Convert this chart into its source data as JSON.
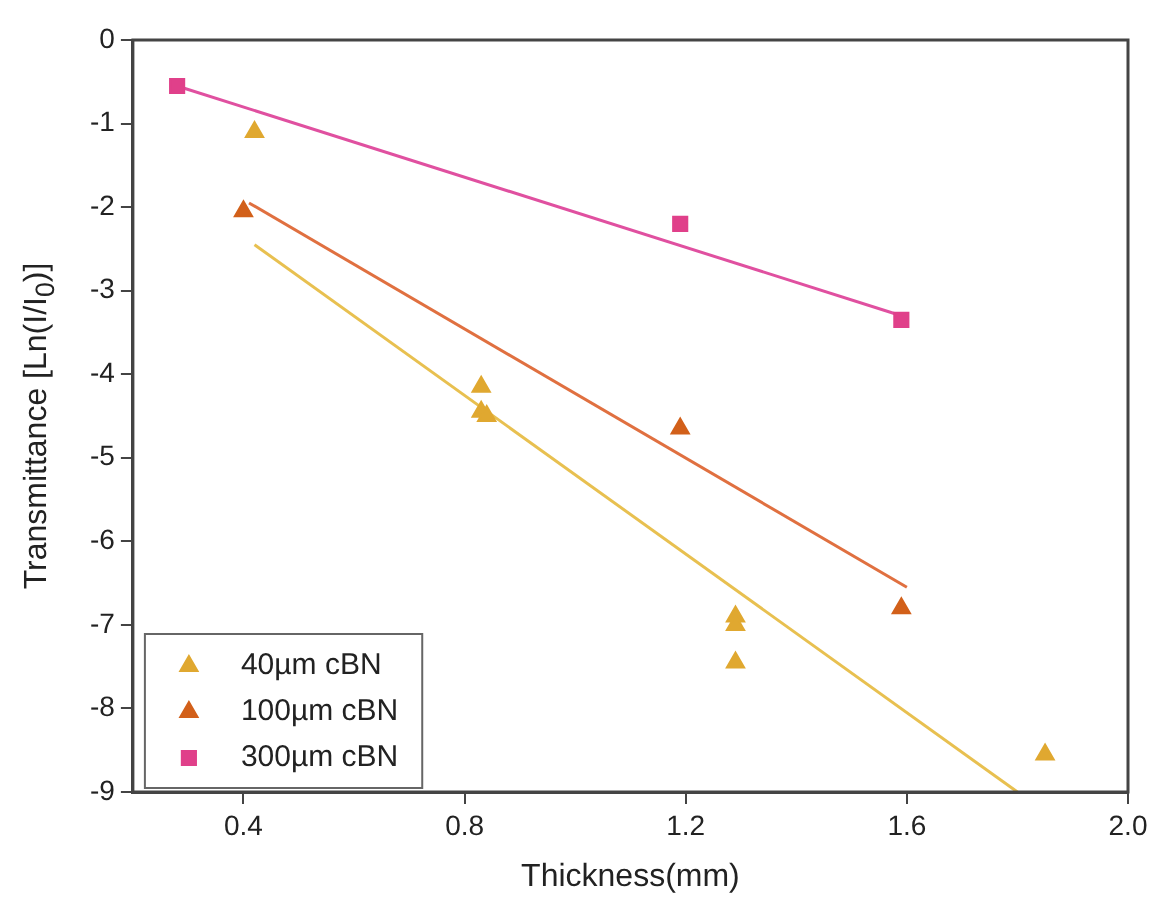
{
  "chart_data": {
    "type": "scatter",
    "xlabel": "Thickness(mm)",
    "ylabel": "Transmittance [Ln(I/I$_{0}$)]",
    "xlim": [
      0.2,
      2.0
    ],
    "xticks": [
      {
        "value": 0.4,
        "label": "0.4"
      },
      {
        "value": 0.8,
        "label": "0.8"
      },
      {
        "value": 1.2,
        "label": "1.2"
      },
      {
        "value": 1.6,
        "label": "1.6"
      },
      {
        "value": 2.0,
        "label": "2.0"
      }
    ],
    "ylim": [
      -9,
      0
    ],
    "yticks": [
      0,
      -1,
      -2,
      -3,
      -4,
      -5,
      -6,
      -7,
      -8,
      -9
    ],
    "grid": false,
    "legend": "bottom left",
    "marker": "triangle",
    "series": [
      {
        "name": "40µm cBN",
        "color": "#e0a830",
        "x": [
          0.42,
          0.83,
          0.83,
          0.84,
          1.29,
          1.29,
          1.29,
          1.85
        ],
        "values": [
          -1.1,
          -4.15,
          -4.45,
          -4.5,
          -6.9,
          -7.0,
          -7.45,
          -8.55
        ]
      },
      {
        "name": "100µm cBN",
        "color": "#d2601a",
        "x": [
          0.4,
          1.19,
          1.59
        ],
        "values": [
          -2.05,
          -4.65,
          -6.8
        ]
      },
      {
        "name": "300µm cBN",
        "color": "#e0408a",
        "marker": "square",
        "x": [
          0.28,
          1.19,
          1.59
        ],
        "values": [
          -0.55,
          -2.2,
          -3.35
        ]
      },
      {
        "type": "line",
        "color": "#e8c050",
        "marker": "none",
        "x": [
          0.42,
          1.8
        ],
        "values": [
          -2.45,
          -9.0
        ]
      },
      {
        "type": "line",
        "color": "#e07040",
        "marker": "none",
        "x": [
          0.41,
          1.6
        ],
        "values": [
          -1.95,
          -6.55
        ]
      },
      {
        "type": "line",
        "color": "#e050a0",
        "marker": "none",
        "x": [
          0.28,
          1.59
        ],
        "values": [
          -0.55,
          -3.3
        ]
      }
    ]
  }
}
